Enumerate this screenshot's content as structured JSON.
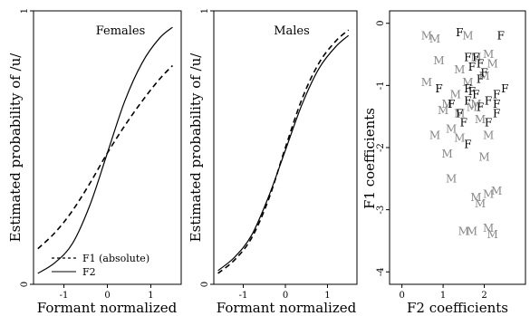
{
  "chart_data": [
    {
      "type": "line",
      "title": "Females",
      "xlabel": "Formant normalized",
      "ylabel": "Estimated probability of /u/",
      "xlim": [
        -1.7,
        1.7
      ],
      "ylim": [
        0,
        1
      ],
      "xticks": [
        "-1",
        "0",
        "1"
      ],
      "yticks": [
        "0",
        "1"
      ],
      "legend": {
        "placement": "bottom-right",
        "entries": [
          "F1 (absolute)",
          "F2"
        ]
      },
      "series": [
        {
          "name": "F1 (absolute)",
          "style": "dashed",
          "x": [
            -1.6,
            -1.2,
            -0.8,
            -0.4,
            0,
            0.4,
            0.8,
            1.2,
            1.5
          ],
          "y": [
            0.13,
            0.19,
            0.27,
            0.37,
            0.48,
            0.58,
            0.67,
            0.75,
            0.8
          ]
        },
        {
          "name": "F2",
          "style": "solid",
          "x": [
            -1.6,
            -1.2,
            -0.8,
            -0.4,
            0,
            0.4,
            0.8,
            1.2,
            1.5
          ],
          "y": [
            0.04,
            0.08,
            0.15,
            0.29,
            0.48,
            0.67,
            0.81,
            0.9,
            0.94
          ]
        }
      ]
    },
    {
      "type": "line",
      "title": "Males",
      "xlabel": "Formant normalized",
      "ylabel": "Estimated probability of /u/",
      "xlim": [
        -1.7,
        1.7
      ],
      "ylim": [
        0,
        1
      ],
      "xticks": [
        "-1",
        "0",
        "1"
      ],
      "yticks": [
        "0",
        "1"
      ],
      "series": [
        {
          "name": "F1 (absolute)",
          "style": "dashed",
          "x": [
            -1.6,
            -1.2,
            -0.8,
            -0.4,
            0,
            0.4,
            0.8,
            1.2,
            1.5
          ],
          "y": [
            0.04,
            0.09,
            0.17,
            0.31,
            0.5,
            0.68,
            0.81,
            0.89,
            0.93
          ]
        },
        {
          "name": "F2",
          "style": "solid",
          "x": [
            -1.6,
            -1.2,
            -0.8,
            -0.4,
            0,
            0.4,
            0.8,
            1.2,
            1.5
          ],
          "y": [
            0.05,
            0.1,
            0.18,
            0.32,
            0.49,
            0.66,
            0.79,
            0.87,
            0.91
          ]
        }
      ]
    },
    {
      "type": "scatter",
      "xlabel": "F2 coefficients",
      "ylabel": "F1 coefficients",
      "xlim": [
        -0.3,
        3.0
      ],
      "ylim": [
        -4.2,
        0.2
      ],
      "xticks": [
        "0",
        "1",
        "2"
      ],
      "yticks": [
        "-4",
        "-3",
        "-2",
        "-1",
        "0"
      ],
      "series": [
        {
          "name": "M",
          "color": "#888888",
          "points": [
            [
              0.6,
              -0.2
            ],
            [
              0.8,
              -0.25
            ],
            [
              1.6,
              -0.2
            ],
            [
              2.1,
              -0.5
            ],
            [
              2.2,
              -0.65
            ],
            [
              0.9,
              -0.6
            ],
            [
              1.8,
              -0.55
            ],
            [
              1.4,
              -0.75
            ],
            [
              2.0,
              -0.85
            ],
            [
              1.6,
              -0.95
            ],
            [
              0.6,
              -0.95
            ],
            [
              1.1,
              -1.3
            ],
            [
              1.3,
              -1.15
            ],
            [
              1.8,
              -1.3
            ],
            [
              1.4,
              -1.45
            ],
            [
              1.0,
              -1.4
            ],
            [
              1.7,
              -1.35
            ],
            [
              1.2,
              -1.7
            ],
            [
              0.8,
              -1.8
            ],
            [
              1.4,
              -1.85
            ],
            [
              2.1,
              -1.8
            ],
            [
              1.9,
              -1.55
            ],
            [
              1.1,
              -2.1
            ],
            [
              2.0,
              -2.15
            ],
            [
              1.2,
              -2.5
            ],
            [
              1.8,
              -2.8
            ],
            [
              2.1,
              -2.75
            ],
            [
              2.3,
              -2.7
            ],
            [
              1.9,
              -2.9
            ],
            [
              1.5,
              -3.35
            ],
            [
              1.7,
              -3.35
            ],
            [
              2.1,
              -3.3
            ],
            [
              2.2,
              -3.4
            ]
          ]
        },
        {
          "name": "F",
          "color": "#000000",
          "points": [
            [
              1.4,
              -0.15
            ],
            [
              2.4,
              -0.2
            ],
            [
              1.6,
              -0.55
            ],
            [
              1.8,
              -0.55
            ],
            [
              1.9,
              -0.65
            ],
            [
              1.7,
              -0.7
            ],
            [
              2.0,
              -0.8
            ],
            [
              1.9,
              -0.9
            ],
            [
              0.9,
              -1.05
            ],
            [
              1.6,
              -1.05
            ],
            [
              1.7,
              -1.1
            ],
            [
              1.8,
              -1.15
            ],
            [
              2.5,
              -1.05
            ],
            [
              2.3,
              -1.15
            ],
            [
              1.2,
              -1.3
            ],
            [
              1.6,
              -1.25
            ],
            [
              2.1,
              -1.25
            ],
            [
              2.3,
              -1.3
            ],
            [
              1.4,
              -1.45
            ],
            [
              1.9,
              -1.35
            ],
            [
              2.3,
              -1.45
            ],
            [
              2.1,
              -1.6
            ],
            [
              1.5,
              -1.6
            ],
            [
              1.6,
              -1.95
            ]
          ]
        }
      ]
    }
  ]
}
